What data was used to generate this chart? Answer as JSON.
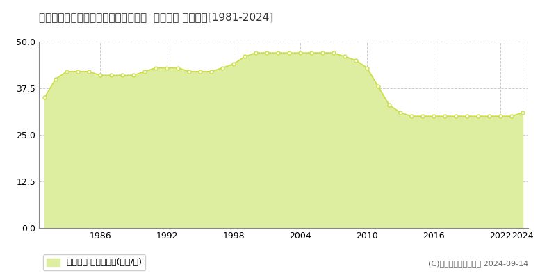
{
  "title": "高知県高知市赤石町字ミドロ８８番４  地価公示 地価推移[1981-2024]",
  "years": [
    1981,
    1982,
    1983,
    1984,
    1985,
    1986,
    1987,
    1988,
    1989,
    1990,
    1991,
    1992,
    1993,
    1994,
    1995,
    1996,
    1997,
    1998,
    1999,
    2000,
    2001,
    2002,
    2003,
    2004,
    2005,
    2006,
    2007,
    2008,
    2009,
    2010,
    2011,
    2012,
    2013,
    2014,
    2015,
    2016,
    2017,
    2018,
    2019,
    2020,
    2021,
    2022,
    2023,
    2024
  ],
  "values": [
    35,
    40,
    42,
    42,
    42,
    41,
    41,
    41,
    41,
    42,
    43,
    43,
    43,
    42,
    42,
    42,
    43,
    44,
    46,
    47,
    47,
    47,
    47,
    47,
    47,
    47,
    47,
    46,
    45,
    43,
    38,
    33,
    31,
    30,
    30,
    30,
    30,
    30,
    30,
    30,
    30,
    30,
    30,
    31
  ],
  "line_color": "#ccdd44",
  "fill_color": "#ddeea0",
  "marker_color": "#ffffff",
  "marker_edge_color": "#ccdd44",
  "background_color": "#ffffff",
  "grid_color": "#cccccc",
  "ylim": [
    0,
    50
  ],
  "yticks": [
    0,
    12.5,
    25,
    37.5,
    50
  ],
  "xticks": [
    1986,
    1992,
    1998,
    2004,
    2010,
    2016,
    2022,
    2024
  ],
  "legend_label": "地価公示 平均坪単価(万円/坪)",
  "credit": "(C)土地価格ドットコム 2024-09-14",
  "title_fontsize": 11,
  "tick_fontsize": 9,
  "legend_fontsize": 9,
  "credit_fontsize": 8
}
